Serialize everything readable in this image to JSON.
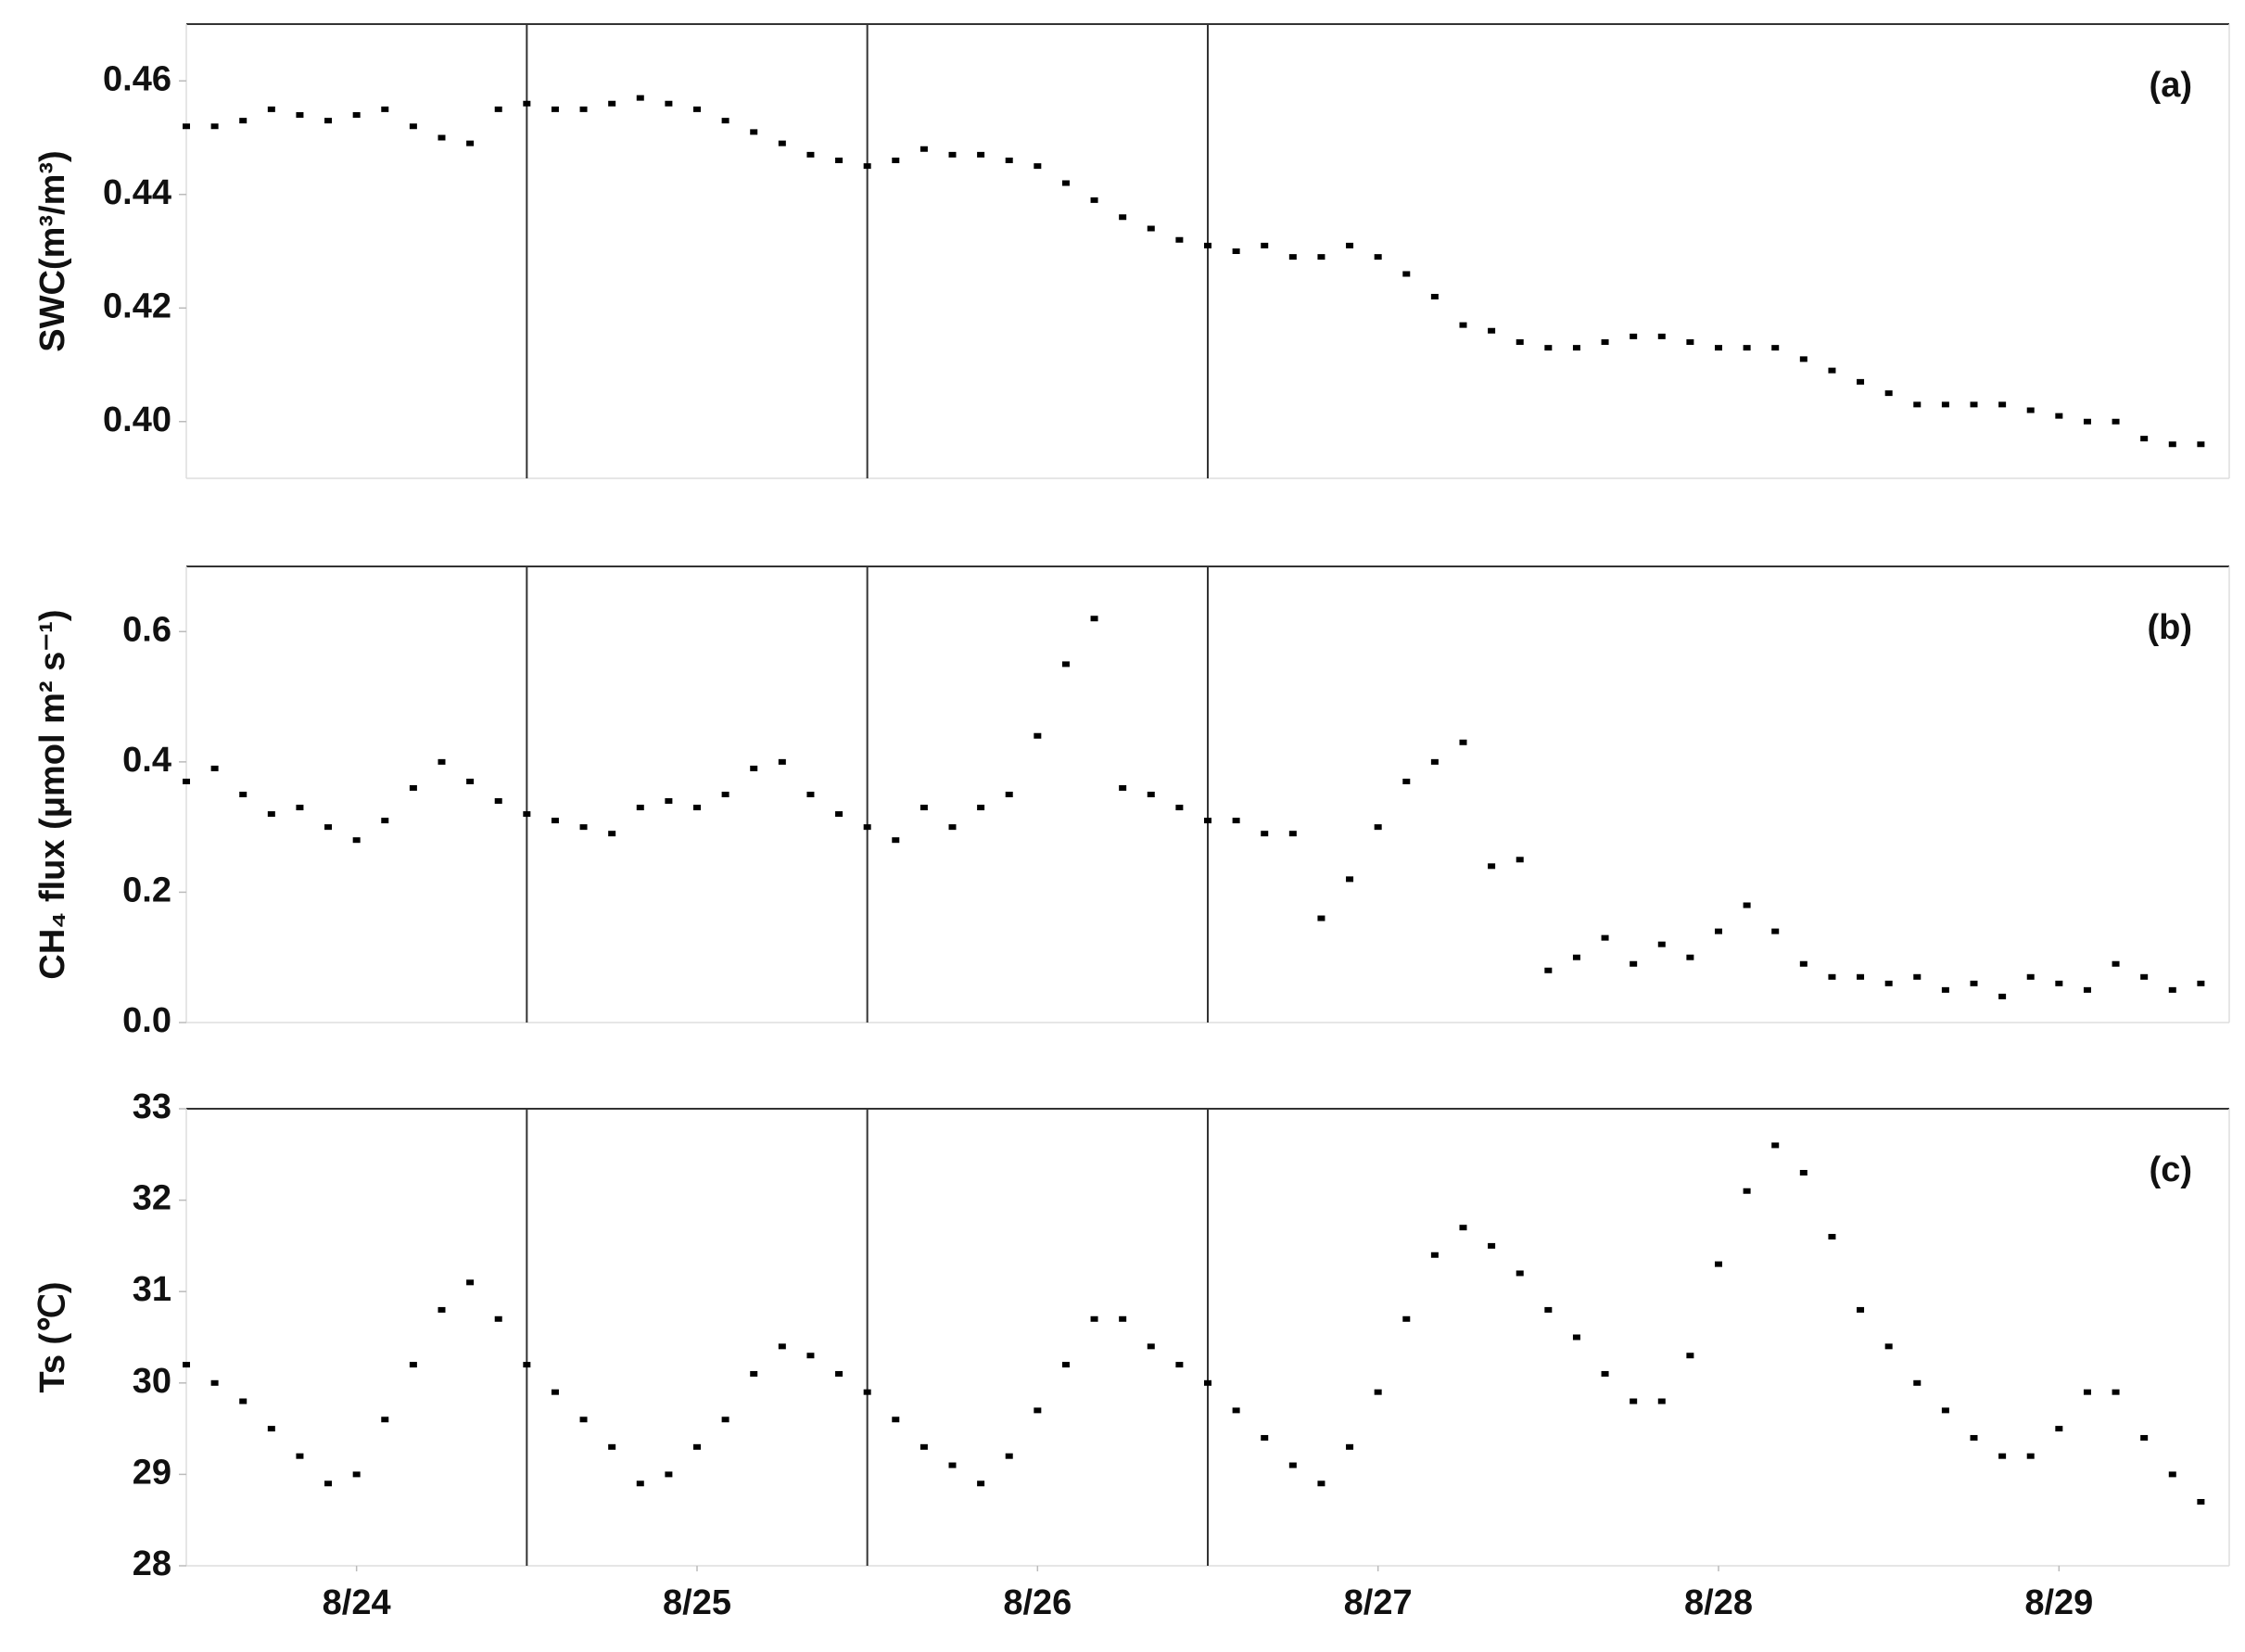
{
  "chart_data": [
    {
      "type": "scatter",
      "annotation": "(a)",
      "y_label": "SWC(m³/m³)",
      "color": "#000000",
      "x": [
        0,
        2,
        4,
        6,
        8,
        10,
        12,
        14,
        16,
        18,
        20,
        22,
        24,
        26,
        28,
        30,
        32,
        34,
        36,
        38,
        40,
        42,
        44,
        46,
        48,
        50,
        52,
        54,
        56,
        58,
        60,
        62,
        64,
        66,
        68,
        70,
        72,
        74,
        76,
        78,
        80,
        82,
        84,
        86,
        88,
        90,
        92,
        94,
        96,
        98,
        100,
        102,
        104,
        106,
        108,
        110,
        112,
        114,
        116,
        118,
        120,
        122,
        124,
        126,
        128,
        130,
        132,
        134,
        136,
        138,
        140,
        142
      ],
      "values": [
        0.452,
        0.452,
        0.453,
        0.455,
        0.454,
        0.453,
        0.454,
        0.455,
        0.452,
        0.45,
        0.449,
        0.455,
        0.456,
        0.455,
        0.455,
        0.456,
        0.457,
        0.456,
        0.455,
        0.453,
        0.451,
        0.449,
        0.447,
        0.446,
        0.445,
        0.446,
        0.448,
        0.447,
        0.447,
        0.446,
        0.445,
        0.442,
        0.439,
        0.436,
        0.434,
        0.432,
        0.431,
        0.43,
        0.431,
        0.429,
        0.429,
        0.431,
        0.429,
        0.426,
        0.422,
        0.417,
        0.416,
        0.414,
        0.413,
        0.413,
        0.414,
        0.415,
        0.415,
        0.414,
        0.413,
        0.413,
        0.413,
        0.411,
        0.409,
        0.407,
        0.405,
        0.403,
        0.403,
        0.403,
        0.403,
        0.402,
        0.401,
        0.4,
        0.4,
        0.397,
        0.396,
        0.396
      ],
      "xlim": [
        0,
        144
      ],
      "vlines": [
        24,
        48,
        72
      ],
      "ylim": [
        0.39,
        0.47
      ],
      "yticks": [
        {
          "value": 0.4,
          "label": "0.40"
        },
        0.42,
        0.44,
        0.46
      ]
    },
    {
      "type": "scatter",
      "annotation": "(b)",
      "y_label": "CH₄ flux (μmol m² s⁻¹)",
      "color": "#000000",
      "x": [
        0,
        2,
        4,
        6,
        8,
        10,
        12,
        14,
        16,
        18,
        20,
        22,
        24,
        26,
        28,
        30,
        32,
        34,
        36,
        38,
        40,
        42,
        44,
        46,
        48,
        50,
        52,
        54,
        56,
        58,
        60,
        62,
        64,
        66,
        68,
        70,
        72,
        74,
        76,
        78,
        80,
        82,
        84,
        86,
        88,
        90,
        92,
        94,
        96,
        98,
        100,
        102,
        104,
        106,
        108,
        110,
        112,
        114,
        116,
        118,
        120,
        122,
        124,
        126,
        128,
        130,
        132,
        134,
        136,
        138,
        140,
        142
      ],
      "values": [
        0.37,
        0.39,
        0.35,
        0.32,
        0.33,
        0.3,
        0.28,
        0.31,
        0.36,
        0.4,
        0.37,
        0.34,
        0.32,
        0.31,
        0.3,
        0.29,
        0.33,
        0.34,
        0.33,
        0.35,
        0.39,
        0.4,
        0.35,
        0.32,
        0.3,
        0.28,
        0.33,
        0.3,
        0.33,
        0.35,
        0.44,
        0.55,
        0.62,
        0.36,
        0.35,
        0.33,
        0.31,
        0.31,
        0.29,
        0.29,
        0.16,
        0.22,
        0.3,
        0.37,
        0.4,
        0.43,
        0.24,
        0.25,
        0.08,
        0.1,
        0.13,
        0.09,
        0.12,
        0.1,
        0.14,
        0.18,
        0.14,
        0.09,
        0.07,
        0.07,
        0.06,
        0.07,
        0.05,
        0.06,
        0.04,
        0.07,
        0.06,
        0.05,
        0.09,
        0.07,
        0.05,
        0.06
      ],
      "xlim": [
        0,
        144
      ],
      "vlines": [
        24,
        48,
        72
      ],
      "ylim": [
        0,
        0.7
      ],
      "yticks": [
        {
          "value": 0,
          "label": "0.0"
        },
        0.2,
        0.4,
        0.6
      ]
    },
    {
      "type": "scatter",
      "annotation": "(c)",
      "y_label": "Ts (℃)",
      "color": "#000000",
      "x": [
        0,
        2,
        4,
        6,
        8,
        10,
        12,
        14,
        16,
        18,
        20,
        22,
        24,
        26,
        28,
        30,
        32,
        34,
        36,
        38,
        40,
        42,
        44,
        46,
        48,
        50,
        52,
        54,
        56,
        58,
        60,
        62,
        64,
        66,
        68,
        70,
        72,
        74,
        76,
        78,
        80,
        82,
        84,
        86,
        88,
        90,
        92,
        94,
        96,
        98,
        100,
        102,
        104,
        106,
        108,
        110,
        112,
        114,
        116,
        118,
        120,
        122,
        124,
        126,
        128,
        130,
        132,
        134,
        136,
        138,
        140,
        142
      ],
      "values": [
        30.2,
        30.0,
        29.8,
        29.5,
        29.2,
        28.9,
        29.0,
        29.6,
        30.2,
        30.8,
        31.1,
        30.7,
        30.2,
        29.9,
        29.6,
        29.3,
        28.9,
        29.0,
        29.3,
        29.6,
        30.1,
        30.4,
        30.3,
        30.1,
        29.9,
        29.6,
        29.3,
        29.1,
        28.9,
        29.2,
        29.7,
        30.2,
        30.7,
        30.7,
        30.4,
        30.2,
        30.0,
        29.7,
        29.4,
        29.1,
        28.9,
        29.3,
        29.9,
        30.7,
        31.4,
        31.7,
        31.5,
        31.2,
        30.8,
        30.5,
        30.1,
        29.8,
        29.8,
        30.3,
        31.3,
        32.1,
        32.6,
        32.3,
        31.6,
        30.8,
        30.4,
        30.0,
        29.7,
        29.4,
        29.2,
        29.2,
        29.5,
        29.9,
        29.9,
        29.4,
        29.0,
        28.7
      ],
      "xlim": [
        0,
        144
      ],
      "vlines": [
        24,
        48,
        72
      ],
      "xticks": [
        {
          "value": 12,
          "label": "8/24"
        },
        {
          "value": 36,
          "label": "8/25"
        },
        {
          "value": 60,
          "label": "8/26"
        },
        {
          "value": 84,
          "label": "8/27"
        },
        {
          "value": 108,
          "label": "8/28"
        },
        {
          "value": 132,
          "label": "8/29"
        }
      ],
      "ylim": [
        28,
        33
      ],
      "yticks": [
        28,
        29,
        30,
        31,
        32,
        33
      ]
    }
  ]
}
